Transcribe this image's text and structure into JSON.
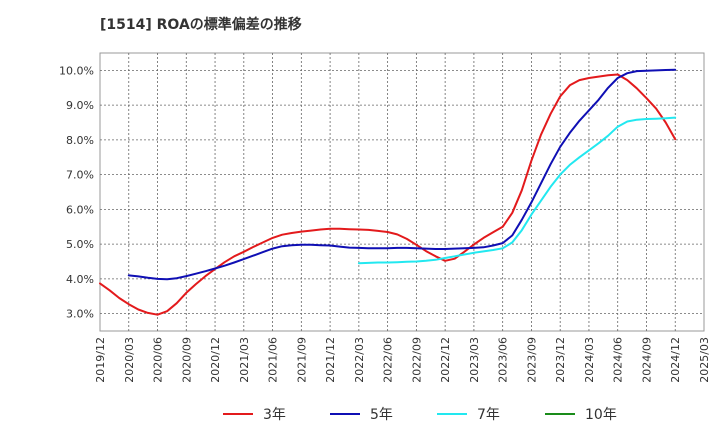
{
  "chart_data": {
    "type": "line",
    "title": "[1514]  ROAの標準偏差の推移",
    "xlabel": "",
    "ylabel": "",
    "x_ticks": [
      "2019/12",
      "2020/03",
      "2020/06",
      "2020/09",
      "2020/12",
      "2021/03",
      "2021/06",
      "2021/09",
      "2021/12",
      "2022/03",
      "2022/06",
      "2022/09",
      "2022/12",
      "2023/03",
      "2023/06",
      "2023/09",
      "2023/12",
      "2024/03",
      "2024/06",
      "2024/09",
      "2024/12",
      "2025/03"
    ],
    "y_ticks": [
      "3.0%",
      "4.0%",
      "5.0%",
      "6.0%",
      "7.0%",
      "8.0%",
      "9.0%",
      "10.0%"
    ],
    "y_tick_values": [
      3.0,
      4.0,
      5.0,
      6.0,
      7.0,
      8.0,
      9.0,
      10.0
    ],
    "ylim": [
      2.5,
      10.5
    ],
    "grid": true,
    "legend_position": "bottom",
    "series": [
      {
        "name": "3年",
        "color": "#e31a1c",
        "x": [
          "2019/12",
          "2020/01",
          "2020/02",
          "2020/03",
          "2020/04",
          "2020/05",
          "2020/06",
          "2020/07",
          "2020/08",
          "2020/09",
          "2020/10",
          "2020/11",
          "2020/12",
          "2021/01",
          "2021/02",
          "2021/03",
          "2021/04",
          "2021/05",
          "2021/06",
          "2021/07",
          "2021/08",
          "2021/09",
          "2021/10",
          "2021/11",
          "2021/12",
          "2022/01",
          "2022/02",
          "2022/03",
          "2022/04",
          "2022/05",
          "2022/06",
          "2022/07",
          "2022/08",
          "2022/09",
          "2022/10",
          "2022/11",
          "2022/12",
          "2023/01",
          "2023/02",
          "2023/03",
          "2023/04",
          "2023/05",
          "2023/06",
          "2023/07",
          "2023/08",
          "2023/09",
          "2023/10",
          "2023/11",
          "2023/12",
          "2024/01",
          "2024/02",
          "2024/03",
          "2024/04",
          "2024/05",
          "2024/06",
          "2024/07",
          "2024/08",
          "2024/09",
          "2024/10",
          "2024/11",
          "2024/12"
        ],
        "values": [
          3.87,
          3.67,
          3.45,
          3.27,
          3.12,
          3.02,
          2.97,
          3.07,
          3.3,
          3.6,
          3.85,
          4.08,
          4.28,
          4.48,
          4.65,
          4.78,
          4.92,
          5.05,
          5.18,
          5.27,
          5.32,
          5.36,
          5.39,
          5.42,
          5.44,
          5.44,
          5.43,
          5.42,
          5.41,
          5.38,
          5.35,
          5.28,
          5.15,
          4.98,
          4.8,
          4.65,
          4.52,
          4.58,
          4.78,
          4.99,
          5.18,
          5.34,
          5.5,
          5.9,
          6.55,
          7.4,
          8.15,
          8.75,
          9.25,
          9.57,
          9.72,
          9.78,
          9.82,
          9.86,
          9.88,
          9.72,
          9.48,
          9.2,
          8.9,
          8.5,
          8.02
        ]
      },
      {
        "name": "5年",
        "color": "#0f0fb4",
        "x": [
          "2020/03",
          "2020/04",
          "2020/05",
          "2020/06",
          "2020/07",
          "2020/08",
          "2020/09",
          "2020/10",
          "2020/11",
          "2020/12",
          "2021/01",
          "2021/02",
          "2021/03",
          "2021/04",
          "2021/05",
          "2021/06",
          "2021/07",
          "2021/08",
          "2021/09",
          "2021/10",
          "2021/11",
          "2021/12",
          "2022/01",
          "2022/02",
          "2022/03",
          "2022/04",
          "2022/05",
          "2022/06",
          "2022/07",
          "2022/08",
          "2022/09",
          "2022/10",
          "2022/11",
          "2022/12",
          "2023/01",
          "2023/02",
          "2023/03",
          "2023/04",
          "2023/05",
          "2023/06",
          "2023/07",
          "2023/08",
          "2023/09",
          "2023/10",
          "2023/11",
          "2023/12",
          "2024/01",
          "2024/02",
          "2024/03",
          "2024/04",
          "2024/05",
          "2024/06",
          "2024/07",
          "2024/08",
          "2024/09",
          "2024/10",
          "2024/11",
          "2024/12"
        ],
        "values": [
          4.1,
          4.07,
          4.03,
          4.0,
          3.99,
          4.02,
          4.08,
          4.15,
          4.22,
          4.3,
          4.38,
          4.47,
          4.57,
          4.67,
          4.77,
          4.87,
          4.94,
          4.97,
          4.98,
          4.98,
          4.97,
          4.96,
          4.93,
          4.9,
          4.89,
          4.88,
          4.88,
          4.88,
          4.89,
          4.89,
          4.88,
          4.87,
          4.86,
          4.86,
          4.87,
          4.88,
          4.89,
          4.91,
          4.96,
          5.03,
          5.25,
          5.7,
          6.2,
          6.75,
          7.3,
          7.8,
          8.2,
          8.55,
          8.85,
          9.15,
          9.5,
          9.78,
          9.92,
          9.98,
          9.99,
          10.0,
          10.01,
          10.02
        ]
      },
      {
        "name": "7年",
        "color": "#22e8f0",
        "x": [
          "2022/03",
          "2022/04",
          "2022/05",
          "2022/06",
          "2022/07",
          "2022/08",
          "2022/09",
          "2022/10",
          "2022/11",
          "2022/12",
          "2023/01",
          "2023/02",
          "2023/03",
          "2023/04",
          "2023/05",
          "2023/06",
          "2023/07",
          "2023/08",
          "2023/09",
          "2023/10",
          "2023/11",
          "2023/12",
          "2024/01",
          "2024/02",
          "2024/03",
          "2024/04",
          "2024/05",
          "2024/06",
          "2024/07",
          "2024/08",
          "2024/09",
          "2024/10",
          "2024/11",
          "2024/12"
        ],
        "values": [
          4.45,
          4.46,
          4.47,
          4.47,
          4.48,
          4.49,
          4.5,
          4.52,
          4.55,
          4.6,
          4.65,
          4.7,
          4.75,
          4.79,
          4.83,
          4.88,
          5.05,
          5.4,
          5.85,
          6.25,
          6.65,
          7.0,
          7.28,
          7.5,
          7.7,
          7.9,
          8.12,
          8.38,
          8.53,
          8.58,
          8.6,
          8.61,
          8.62,
          8.64
        ]
      },
      {
        "name": "10年",
        "color": "#1a8c1a",
        "x": [],
        "values": []
      }
    ]
  }
}
